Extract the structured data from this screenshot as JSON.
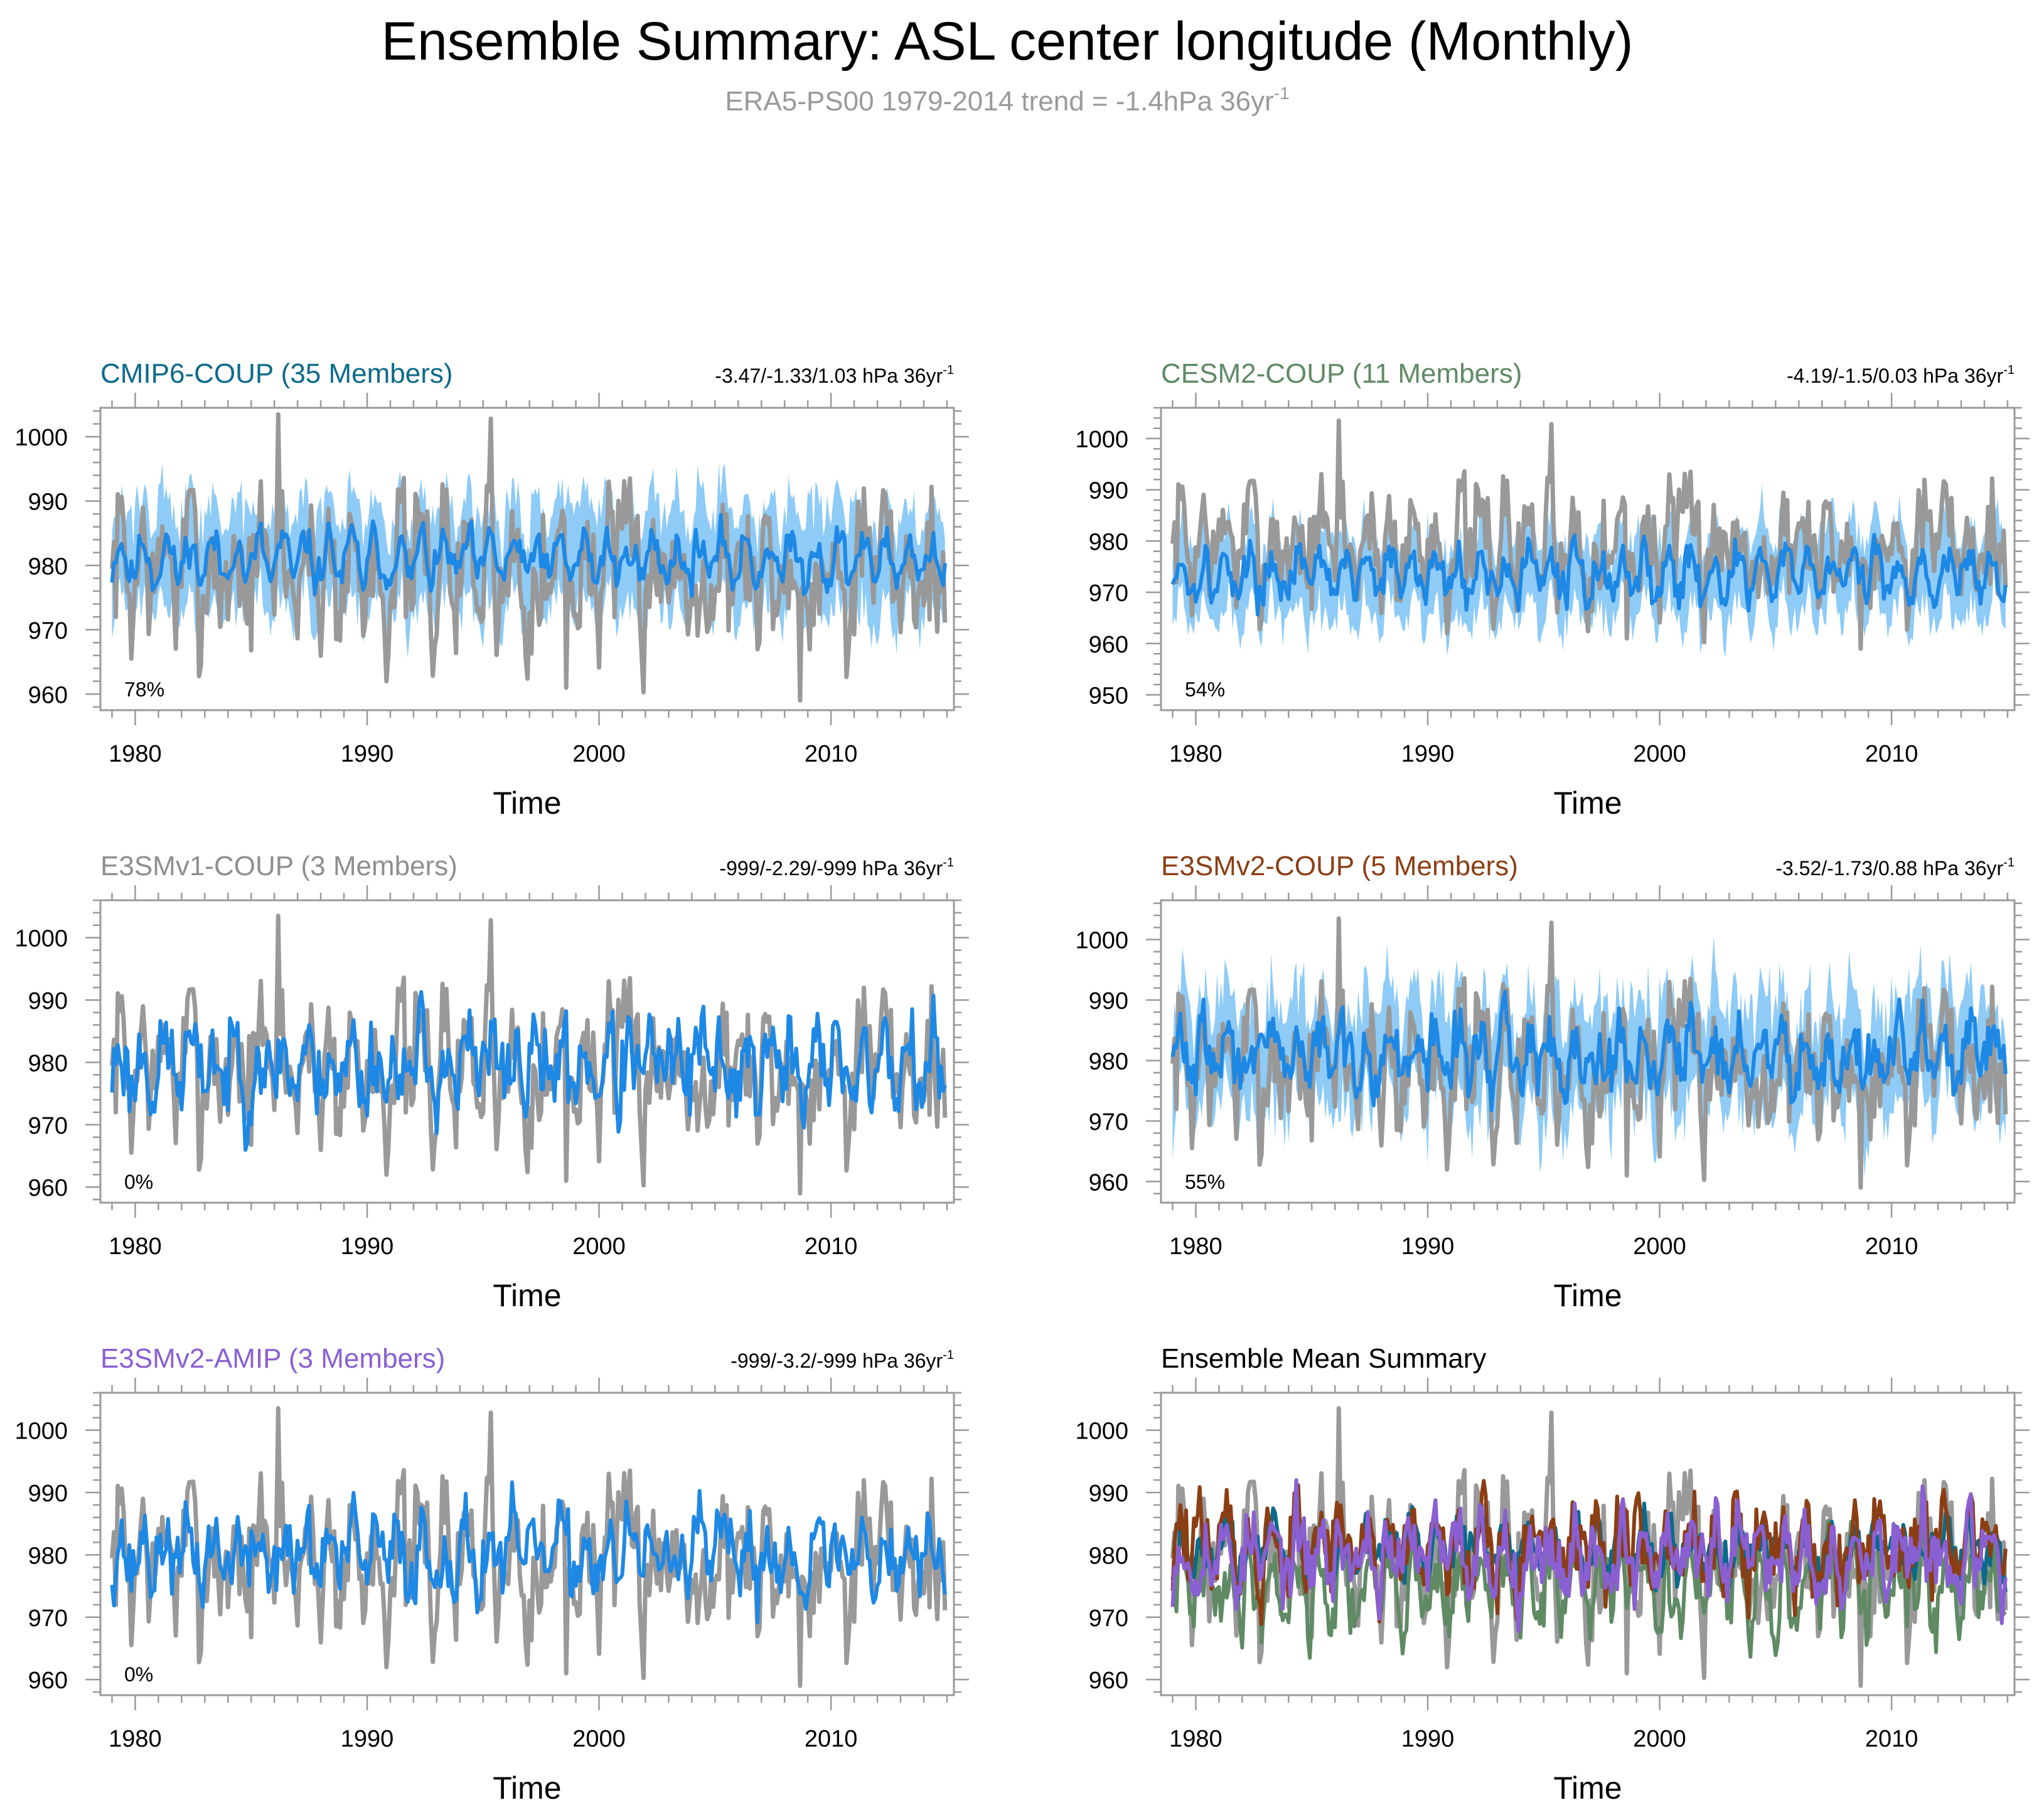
{
  "header": {
    "title": "Ensemble Summary: ASL center longitude (Monthly)",
    "subtitle_main": "ERA5-PS00 1979-2014 trend = -1.4hPa 36yr",
    "subtitle_sup": "-1"
  },
  "colors": {
    "obs": "#999999",
    "ens_mean": "#1e88e5",
    "ens_spread": "#8ecbf6",
    "cmip6": "#0b6a8a",
    "cesm2": "#5f8a64",
    "e3smv1": "#8f8f8f",
    "e3smv2_coup": "#8b3e14",
    "e3smv2_amip": "#8a5fd2",
    "axis": "#9a9a9a"
  },
  "chart_data": [
    {
      "type": "line",
      "id": "cmip6-coup",
      "title": "CMIP6-COUP (35 Members)",
      "title_color": "#0b6a8a",
      "trend_main": "-3.47/-1.33/1.03 hPa 36yr",
      "trend_sup": "-1",
      "percent": "78%",
      "xlabel": "Time",
      "ylabel": "",
      "xlim": [
        1978.5,
        2015.3
      ],
      "ylim": [
        957.5,
        1004.5
      ],
      "xticks": [
        1980,
        1990,
        2000,
        2010
      ],
      "yticks": [
        960,
        970,
        980,
        990,
        1000
      ],
      "series": [
        {
          "name": "ERA5-PS00",
          "role": "obs",
          "seed": 7,
          "mean": 979.5,
          "seasonal": 5,
          "noise": 5.5,
          "spikes": [
            [
              1986.2,
              1003.5
            ],
            [
              1995.3,
              1002.8
            ],
            [
              1998.6,
              961
            ],
            [
              2008.7,
              959
            ]
          ]
        },
        {
          "name": "Ensemble mean",
          "role": "mean",
          "seed": 11,
          "mean": 981,
          "seasonal": 3,
          "noise": 1.5
        },
        {
          "name": "Ensemble spread",
          "role": "spread",
          "seed": 13,
          "mean": 981,
          "seasonal": 3,
          "noise": 1.5,
          "halfwidth": 9
        }
      ]
    },
    {
      "type": "line",
      "id": "cesm2-coup",
      "title": "CESM2-COUP (11 Members)",
      "title_color": "#5f8a64",
      "trend_main": "-4.19/-1.5/0.03 hPa 36yr",
      "trend_sup": "-1",
      "percent": "54%",
      "xlabel": "Time",
      "ylabel": "",
      "xlim": [
        1978.5,
        2015.3
      ],
      "ylim": [
        947,
        1006
      ],
      "xticks": [
        1980,
        1990,
        2000,
        2010
      ],
      "yticks": [
        950,
        960,
        970,
        980,
        990,
        1000
      ],
      "series": [
        {
          "name": "ERA5-PS00",
          "role": "obs",
          "seed": 7,
          "mean": 979.5,
          "seasonal": 5,
          "noise": 5.5,
          "spikes": [
            [
              1986.2,
              1003.5
            ],
            [
              1995.3,
              1002.8
            ],
            [
              1998.6,
              961
            ],
            [
              2008.7,
              959
            ]
          ]
        },
        {
          "name": "Ensemble mean",
          "role": "mean",
          "seed": 17,
          "mean": 973.5,
          "seasonal": 3.5,
          "noise": 2
        },
        {
          "name": "Ensemble spread",
          "role": "spread",
          "seed": 19,
          "mean": 973.5,
          "seasonal": 3.5,
          "noise": 2,
          "halfwidth": 9
        }
      ]
    },
    {
      "type": "line",
      "id": "e3smv1-coup",
      "title": "E3SMv1-COUP (3 Members)",
      "title_color": "#8f8f8f",
      "trend_main": "-999/-2.29/-999 hPa 36yr",
      "trend_sup": "-1",
      "percent": "0%",
      "xlabel": "Time",
      "ylabel": "",
      "xlim": [
        1978.5,
        2015.3
      ],
      "ylim": [
        957.5,
        1006
      ],
      "xticks": [
        1980,
        1990,
        2000,
        2010
      ],
      "yticks": [
        960,
        970,
        980,
        990,
        1000
      ],
      "series": [
        {
          "name": "ERA5-PS00",
          "role": "obs",
          "seed": 7,
          "mean": 979.5,
          "seasonal": 5,
          "noise": 5.5,
          "spikes": [
            [
              1986.2,
              1003.5
            ],
            [
              1995.3,
              1002.8
            ],
            [
              1998.6,
              961
            ],
            [
              2008.7,
              959
            ]
          ]
        },
        {
          "name": "Ensemble mean",
          "role": "mean",
          "seed": 23,
          "mean": 979.5,
          "seasonal": 3.5,
          "noise": 3.5
        }
      ]
    },
    {
      "type": "line",
      "id": "e3smv2-coup",
      "title": "E3SMv2-COUP (5 Members)",
      "title_color": "#8b3e14",
      "trend_main": "-3.52/-1.73/0.88 hPa 36yr",
      "trend_sup": "-1",
      "percent": "55%",
      "xlabel": "Time",
      "ylabel": "",
      "xlim": [
        1978.5,
        2015.3
      ],
      "ylim": [
        956.5,
        1006.5
      ],
      "xticks": [
        1980,
        1990,
        2000,
        2010
      ],
      "yticks": [
        960,
        970,
        980,
        990,
        1000
      ],
      "series": [
        {
          "name": "ERA5-PS00",
          "role": "obs",
          "seed": 7,
          "mean": 979.5,
          "seasonal": 5,
          "noise": 5.5,
          "spikes": [
            [
              1986.2,
              1003.5
            ],
            [
              1995.3,
              1002.8
            ],
            [
              1998.6,
              961
            ],
            [
              2008.7,
              959
            ]
          ]
        },
        {
          "name": "Ensemble mean",
          "role": "mean",
          "seed": 29,
          "mean": 981,
          "seasonal": 3.5,
          "noise": 2.5
        },
        {
          "name": "Ensemble spread",
          "role": "spread",
          "seed": 31,
          "mean": 981,
          "seasonal": 3.5,
          "noise": 2.5,
          "halfwidth": 10
        }
      ]
    },
    {
      "type": "line",
      "id": "e3smv2-amip",
      "title": "E3SMv2-AMIP (3 Members)",
      "title_color": "#8a5fd2",
      "trend_main": "-999/-3.2/-999 hPa 36yr",
      "trend_sup": "-1",
      "percent": "0%",
      "xlabel": "Time",
      "ylabel": "",
      "xlim": [
        1978.5,
        2015.3
      ],
      "ylim": [
        957.5,
        1006
      ],
      "xticks": [
        1980,
        1990,
        2000,
        2010
      ],
      "yticks": [
        960,
        970,
        980,
        990,
        1000
      ],
      "series": [
        {
          "name": "ERA5-PS00",
          "role": "obs",
          "seed": 7,
          "mean": 979.5,
          "seasonal": 5,
          "noise": 5.5,
          "spikes": [
            [
              1986.2,
              1003.5
            ],
            [
              1995.3,
              1002.8
            ],
            [
              1998.6,
              961
            ],
            [
              2008.7,
              959
            ]
          ]
        },
        {
          "name": "Ensemble mean",
          "role": "mean",
          "seed": 37,
          "mean": 980,
          "seasonal": 3.5,
          "noise": 3
        }
      ]
    },
    {
      "type": "line",
      "id": "ensemble-mean-summary",
      "title": "Ensemble Mean Summary",
      "title_color": "#000000",
      "trend_main": "",
      "trend_sup": "",
      "percent": "",
      "xlabel": "Time",
      "ylabel": "",
      "xlim": [
        1978.5,
        2015.3
      ],
      "ylim": [
        957.5,
        1006
      ],
      "xticks": [
        1980,
        1990,
        2000,
        2010
      ],
      "yticks": [
        960,
        970,
        980,
        990,
        1000
      ],
      "series": [
        {
          "name": "ERA5-PS00",
          "role": "obs",
          "seed": 7,
          "mean": 979.5,
          "seasonal": 5,
          "noise": 5.5,
          "spikes": [
            [
              1986.2,
              1003.5
            ],
            [
              1995.3,
              1002.8
            ],
            [
              1998.6,
              961
            ],
            [
              2008.7,
              959
            ]
          ]
        },
        {
          "name": "CESM2-COUP",
          "role": "line",
          "color": "#5f8a64",
          "seed": 41,
          "mean": 975,
          "seasonal": 4,
          "noise": 3
        },
        {
          "name": "CMIP6-COUP",
          "role": "line",
          "color": "#0b6a8a",
          "seed": 43,
          "mean": 981,
          "seasonal": 3,
          "noise": 2
        },
        {
          "name": "E3SMv2-COUP",
          "role": "line",
          "color": "#8b3e14",
          "seed": 47,
          "mean": 981.5,
          "seasonal": 4,
          "noise": 3.5
        },
        {
          "name": "E3SMv2-AMIP",
          "role": "line",
          "color": "#8a5fd2",
          "seed": 53,
          "mean": 980,
          "seasonal": 3.5,
          "noise": 3
        }
      ]
    }
  ]
}
